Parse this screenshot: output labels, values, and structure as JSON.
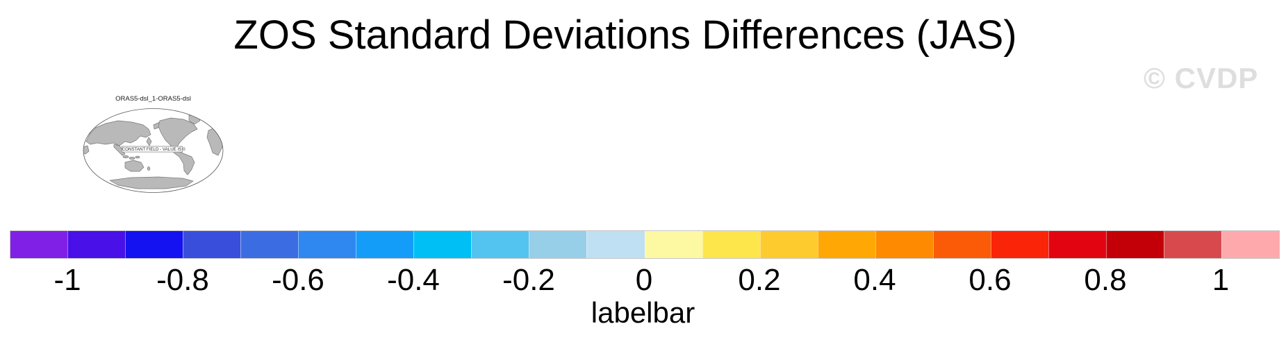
{
  "page": {
    "background": "#ffffff"
  },
  "title": "ZOS Standard Deviations Differences (JAS)",
  "watermark": "© CVDP",
  "map": {
    "title": "ORAS5-dsl_1-ORAS5-dsl",
    "annotation": "CONSTANT FIELD - VALUE IS 0",
    "land_color": "#b9b9b9",
    "coast_color": "#777777",
    "outline_color": "#555555"
  },
  "colorbar": {
    "label": "labelbar",
    "tick_labels": [
      "-1",
      "-0.8",
      "-0.6",
      "-0.4",
      "-0.2",
      "0",
      "0.2",
      "0.4",
      "0.6",
      "0.8",
      "1"
    ],
    "cells": [
      "#8020E6",
      "#4A10E8",
      "#1412F0",
      "#3A4EDC",
      "#3C6CE2",
      "#2F87F0",
      "#149DF8",
      "#00BFF4",
      "#53C3EF",
      "#97CEE8",
      "#BFE0F2",
      "#FDF9A3",
      "#FDE64C",
      "#FDCB2E",
      "#FFA805",
      "#FE8A01",
      "#FB5B06",
      "#FA2408",
      "#E20511",
      "#C30008",
      "#D8494D",
      "#FEA9AC"
    ]
  },
  "chart_data": {
    "type": "heatmap",
    "title": "ZOS Standard Deviations Differences (JAS)",
    "panel_title": "ORAS5-dsl_1-ORAS5-dsl",
    "annotation": "CONSTANT FIELD - VALUE IS 0",
    "field_constant_value": 0,
    "colorbar_label": "labelbar",
    "colorbar_levels": [
      -1.1,
      -1.0,
      -0.9,
      -0.8,
      -0.7,
      -0.6,
      -0.5,
      -0.4,
      -0.3,
      -0.2,
      -0.1,
      0,
      0.1,
      0.2,
      0.3,
      0.4,
      0.5,
      0.6,
      0.7,
      0.8,
      0.9,
      1.0,
      1.1
    ],
    "colorbar_colors": [
      "#8020E6",
      "#4A10E8",
      "#1412F0",
      "#3A4EDC",
      "#3C6CE2",
      "#2F87F0",
      "#149DF8",
      "#00BFF4",
      "#53C3EF",
      "#97CEE8",
      "#BFE0F2",
      "#FDF9A3",
      "#FDE64C",
      "#FDCB2E",
      "#FFA805",
      "#FE8A01",
      "#FB5B06",
      "#FA2408",
      "#E20511",
      "#C30008",
      "#D8494D",
      "#FEA9AC"
    ],
    "axis_tick_labels": [
      "-1",
      "-0.8",
      "-0.6",
      "-0.4",
      "-0.2",
      "0",
      "0.2",
      "0.4",
      "0.6",
      "0.8",
      "1"
    ],
    "legend_position": "bottom",
    "grid": false
  }
}
